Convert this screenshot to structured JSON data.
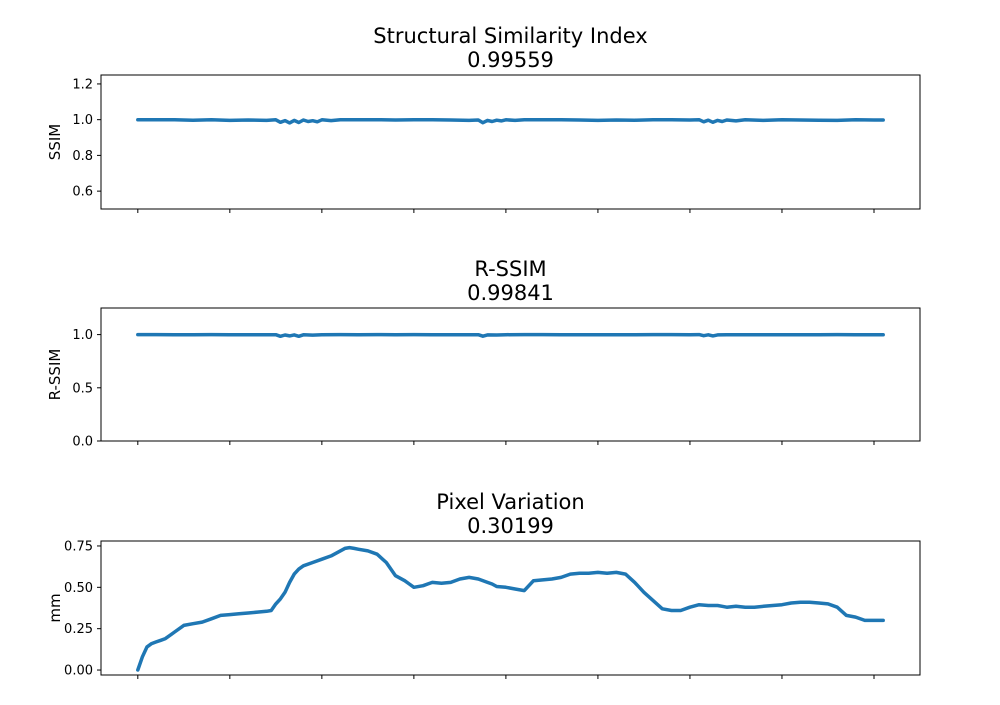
{
  "chart_data": [
    {
      "type": "line",
      "title": "Structural Similarity Index",
      "subtitle": "0.99559",
      "xlabel": "",
      "ylabel": "SSIM",
      "ylim": [
        0.5,
        1.25
      ],
      "yticks": [
        0.6,
        0.8,
        1.0,
        1.2
      ],
      "ytick_labels": [
        "0.6",
        "0.8",
        "1.0",
        "1.2"
      ],
      "xlim": [
        -4,
        85
      ],
      "xticks": [
        0,
        10,
        20,
        30,
        40,
        50,
        60,
        70,
        80
      ],
      "xtick_labels": [
        "",
        "",
        "",
        "",
        "",
        "",
        "",
        "",
        ""
      ],
      "grid": false,
      "color": "#1f77b4",
      "series": [
        {
          "x": [
            0,
            2,
            4,
            6,
            8,
            10,
            12,
            14,
            15,
            15.5,
            16,
            16.5,
            17,
            17.5,
            18,
            18.5,
            19,
            19.5,
            20,
            21,
            22,
            24,
            26,
            28,
            30,
            32,
            34,
            36,
            37,
            37.5,
            38,
            38.5,
            39,
            39.5,
            40,
            41,
            42,
            44,
            46,
            48,
            50,
            52,
            54,
            56,
            58,
            60,
            61,
            61.5,
            62,
            62.5,
            63,
            63.5,
            64,
            65,
            66,
            68,
            70,
            72,
            74,
            76,
            78,
            80,
            81
          ],
          "y": [
            1.0,
            1.0,
            0.999,
            0.997,
            0.999,
            0.996,
            0.998,
            0.996,
            0.999,
            0.985,
            0.995,
            0.982,
            0.996,
            0.984,
            0.998,
            0.99,
            0.994,
            0.988,
            0.999,
            0.995,
            1.0,
            0.999,
            1.0,
            0.998,
            1.0,
            0.999,
            0.998,
            0.996,
            0.998,
            0.983,
            0.996,
            0.99,
            0.997,
            0.993,
            0.999,
            0.996,
            1.0,
            1.0,
            0.999,
            0.998,
            0.996,
            0.998,
            0.997,
            0.999,
            1.0,
            0.998,
            1.0,
            0.988,
            0.997,
            0.985,
            0.996,
            0.99,
            0.998,
            0.993,
            0.999,
            0.996,
            0.999,
            0.998,
            0.997,
            0.996,
            0.999,
            0.998,
            0.998
          ]
        }
      ]
    },
    {
      "type": "line",
      "title": "R-SSIM",
      "subtitle": "0.99841",
      "xlabel": "",
      "ylabel": "R-SSIM",
      "ylim": [
        0.0,
        1.25
      ],
      "yticks": [
        0.0,
        0.5,
        1.0
      ],
      "ytick_labels": [
        "0.0",
        "0.5",
        "1.0"
      ],
      "xlim": [
        -4,
        85
      ],
      "xticks": [
        0,
        10,
        20,
        30,
        40,
        50,
        60,
        70,
        80
      ],
      "xtick_labels": [
        "",
        "",
        "",
        "",
        "",
        "",
        "",
        "",
        ""
      ],
      "grid": false,
      "color": "#1f77b4",
      "series": [
        {
          "x": [
            0,
            2,
            4,
            6,
            8,
            10,
            12,
            14,
            15,
            15.5,
            16,
            16.5,
            17,
            17.5,
            18,
            19,
            20,
            22,
            24,
            26,
            28,
            30,
            32,
            34,
            36,
            37,
            37.5,
            38,
            39,
            40,
            42,
            44,
            46,
            48,
            50,
            52,
            54,
            56,
            58,
            60,
            61,
            61.5,
            62,
            62.5,
            63,
            64,
            66,
            68,
            70,
            72,
            74,
            76,
            78,
            80,
            81
          ],
          "y": [
            1.0,
            1.0,
            0.999,
            0.999,
            1.0,
            0.998,
            0.999,
            0.998,
            0.999,
            0.984,
            0.996,
            0.988,
            0.997,
            0.984,
            0.998,
            0.995,
            0.999,
            1.0,
            0.999,
            1.0,
            0.999,
            1.0,
            0.999,
            0.999,
            0.998,
            0.999,
            0.985,
            0.997,
            0.996,
            0.999,
            1.0,
            1.0,
            0.999,
            0.999,
            0.998,
            0.999,
            0.998,
            1.0,
            1.0,
            0.999,
            1.0,
            0.99,
            0.998,
            0.988,
            0.997,
            0.999,
            0.999,
            0.999,
            0.999,
            0.998,
            0.999,
            1.0,
            0.999,
            0.999,
            0.999
          ]
        }
      ]
    },
    {
      "type": "line",
      "title": "Pixel Variation",
      "subtitle": "0.30199",
      "xlabel": "",
      "ylabel": "mm",
      "ylim": [
        -0.03,
        0.78
      ],
      "yticks": [
        0.0,
        0.25,
        0.5,
        0.75
      ],
      "ytick_labels": [
        "0.00",
        "0.25",
        "0.50",
        "0.75"
      ],
      "xlim": [
        -4,
        85
      ],
      "xticks": [
        0,
        10,
        20,
        30,
        40,
        50,
        60,
        70,
        80
      ],
      "xtick_labels": [
        "",
        "",
        "",
        "",
        "",
        "",
        "",
        "",
        ""
      ],
      "grid": false,
      "color": "#1f77b4",
      "series": [
        {
          "x": [
            0,
            0.5,
            1,
            1.5,
            2,
            2.5,
            3,
            4,
            5,
            6,
            7,
            8,
            9,
            10,
            11,
            12,
            13,
            14,
            14.5,
            15,
            15.5,
            16,
            16.5,
            17,
            17.5,
            18,
            19,
            20,
            21,
            22,
            22.5,
            23,
            23.5,
            24,
            25,
            26,
            27,
            28,
            29,
            29.5,
            30,
            31,
            31.5,
            32,
            33,
            34,
            35,
            36,
            37,
            38,
            38.5,
            39,
            40,
            41,
            42,
            43,
            44,
            45,
            46,
            47,
            48,
            49,
            50,
            51,
            52,
            53,
            54,
            55,
            56,
            57,
            58,
            59,
            60,
            61,
            62,
            63,
            63.5,
            64,
            65,
            66,
            67,
            68,
            69,
            70,
            71,
            72,
            73,
            74,
            75,
            76,
            77,
            78,
            79,
            80,
            81
          ],
          "y": [
            0.0,
            0.08,
            0.14,
            0.16,
            0.17,
            0.18,
            0.19,
            0.23,
            0.27,
            0.28,
            0.29,
            0.31,
            0.33,
            0.335,
            0.34,
            0.345,
            0.35,
            0.355,
            0.36,
            0.4,
            0.43,
            0.47,
            0.53,
            0.58,
            0.61,
            0.63,
            0.65,
            0.67,
            0.69,
            0.72,
            0.735,
            0.74,
            0.735,
            0.73,
            0.72,
            0.7,
            0.65,
            0.57,
            0.54,
            0.52,
            0.5,
            0.51,
            0.52,
            0.53,
            0.525,
            0.53,
            0.55,
            0.56,
            0.55,
            0.53,
            0.52,
            0.505,
            0.5,
            0.49,
            0.48,
            0.54,
            0.545,
            0.55,
            0.56,
            0.58,
            0.585,
            0.585,
            0.59,
            0.585,
            0.59,
            0.58,
            0.53,
            0.47,
            0.42,
            0.37,
            0.36,
            0.36,
            0.38,
            0.395,
            0.39,
            0.39,
            0.385,
            0.38,
            0.385,
            0.38,
            0.38,
            0.385,
            0.39,
            0.395,
            0.405,
            0.41,
            0.41,
            0.405,
            0.4,
            0.38,
            0.33,
            0.32,
            0.3,
            0.3,
            0.3
          ]
        }
      ]
    }
  ]
}
